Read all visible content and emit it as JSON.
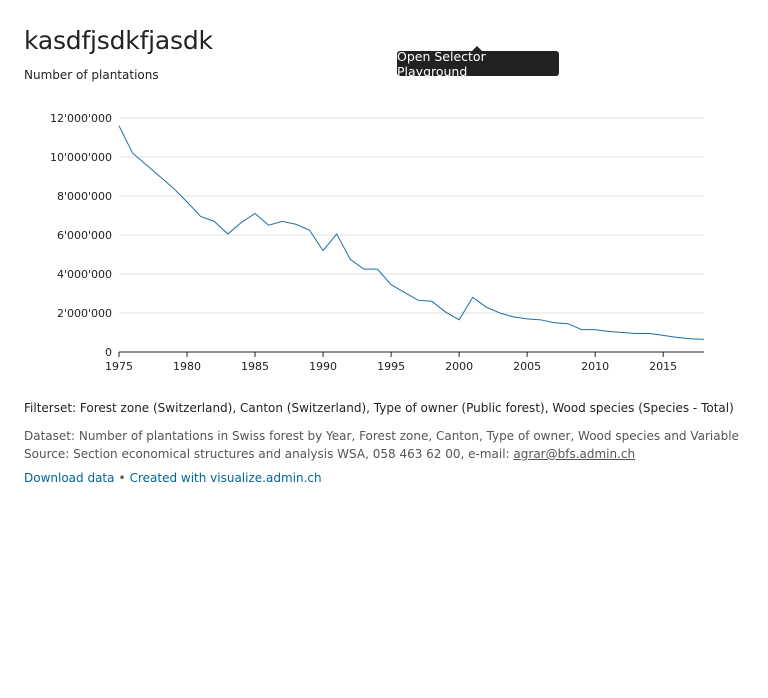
{
  "page": {
    "title": "kasdfjsdkfjasdk",
    "tooltip": "Open Selector Playground"
  },
  "footer": {
    "filterset": "Filterset: Forest zone (Switzerland), Canton (Switzerland), Type of owner (Public forest), Wood species (Species - Total)",
    "dataset": "Dataset: Number of plantations in Swiss forest by Year, Forest zone, Canton, Type of owner, Wood species and Variable",
    "source_prefix": "Source: Section economical structures and analysis WSA, 058 463 62 00, e-mail: ",
    "email": "agrar@bfs.admin.ch",
    "download_label": "Download data",
    "separator": "•",
    "created_label": "Created with visualize.admin.ch"
  },
  "colors": {
    "line": "#1f6ea6",
    "grid": "#e0e0e0",
    "axis": "#222222",
    "link": "#006699"
  },
  "chart_data": {
    "type": "line",
    "ylabel": "Number of plantations",
    "xlim": [
      1975,
      2018
    ],
    "ylim": [
      0,
      12000000
    ],
    "yticks": [
      0,
      2000000,
      4000000,
      6000000,
      8000000,
      10000000,
      12000000
    ],
    "ytick_labels": [
      "0",
      "2'000'000",
      "4'000'000",
      "6'000'000",
      "8'000'000",
      "10'000'000",
      "12'000'000"
    ],
    "xticks": [
      1975,
      1980,
      1985,
      1990,
      1995,
      2000,
      2005,
      2010,
      2015
    ],
    "grid": true,
    "x": [
      1975,
      1976,
      1977,
      1978,
      1979,
      1980,
      1981,
      1982,
      1983,
      1984,
      1985,
      1986,
      1987,
      1988,
      1989,
      1990,
      1991,
      1992,
      1993,
      1994,
      1995,
      1996,
      1997,
      1998,
      1999,
      2000,
      2001,
      2002,
      2003,
      2004,
      2005,
      2006,
      2007,
      2008,
      2009,
      2010,
      2011,
      2012,
      2013,
      2014,
      2015,
      2016,
      2017,
      2018
    ],
    "values": [
      11600000,
      10200000,
      9600000,
      9000000,
      8400000,
      7700000,
      6950000,
      6700000,
      6050000,
      6650000,
      7100000,
      6500000,
      6700000,
      6550000,
      6250000,
      5200000,
      6050000,
      4750000,
      4250000,
      4250000,
      3450000,
      3050000,
      2650000,
      2600000,
      2050000,
      1650000,
      2800000,
      2300000,
      2000000,
      1800000,
      1700000,
      1650000,
      1500000,
      1450000,
      1150000,
      1150000,
      1050000,
      1000000,
      950000,
      950000,
      850000,
      750000,
      680000,
      650000
    ]
  }
}
